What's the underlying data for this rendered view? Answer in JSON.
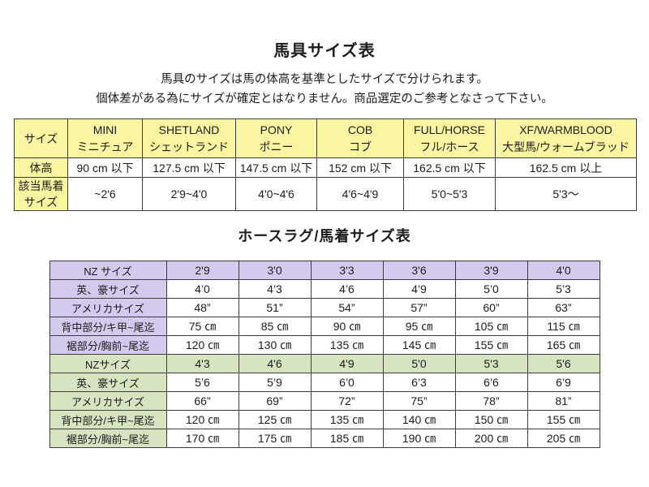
{
  "page": {
    "title1": "馬具サイズ表",
    "subtitle1": "馬具のサイズは馬の体高を基準としたサイズで分けられます。",
    "subtitle2": "個体差がある為にサイズが確定とはなりません。商品選定のご参考となさって下さい。",
    "title2": "ホースラグ/馬着サイズ表"
  },
  "colors": {
    "header_yellow": "#FAF5A0",
    "band_purple": "#D6C9EF",
    "band_green": "#D7E4C2",
    "table_border": "#3C3C3C"
  },
  "harness_table": {
    "corner_label": "サイズ",
    "columns": [
      {
        "en": "MINI",
        "ja": "ミニチュア"
      },
      {
        "en": "SHETLAND",
        "ja": "シェットランド"
      },
      {
        "en": "PONY",
        "ja": "ポニー"
      },
      {
        "en": "COB",
        "ja": "コブ"
      },
      {
        "en": "FULL/HORSE",
        "ja": "フル/ホース"
      },
      {
        "en": "XF/WARMBLOOD",
        "ja": "大型馬/ウォームブラッド"
      }
    ],
    "rows": [
      {
        "label": "体高",
        "values": [
          "90 cm 以下",
          "127.5 cm 以下",
          "147.5 cm 以下",
          "152 cm 以下",
          "162.5 cm 以下",
          "162.5 cm 以上"
        ]
      },
      {
        "label": "該当馬着\nサイズ",
        "values": [
          "~2'6",
          "2'9~4'0",
          "4'0~4'6",
          "4'6~4'9",
          "5'0~5'3",
          "5'3～"
        ]
      }
    ]
  },
  "rug_table": {
    "rows": [
      {
        "label": "NZ サイズ",
        "band": "purple",
        "fill": "full",
        "values": [
          "2'9",
          "3'0",
          "3'3",
          "3'6",
          "3'9",
          "4'0"
        ]
      },
      {
        "label": "英、豪サイズ",
        "band": "purple",
        "fill": "label",
        "values": [
          "4’0",
          "4’3",
          "4’6",
          "4’9",
          "5’0",
          "5’3"
        ]
      },
      {
        "label": "アメリカサイズ",
        "band": "purple",
        "fill": "label",
        "values": [
          "48”",
          "51”",
          "54”",
          "57”",
          "60”",
          "63”"
        ]
      },
      {
        "label": "背中部分/キ甲~尾迄",
        "band": "purple",
        "fill": "label",
        "values": [
          "75 ㎝",
          "85 ㎝",
          "90 ㎝",
          "95 ㎝",
          "105 ㎝",
          "115 ㎝"
        ]
      },
      {
        "label": "裾部分/胸前~尾迄",
        "band": "purple",
        "fill": "label",
        "values": [
          "120 ㎝",
          "130 ㎝",
          "135 ㎝",
          "145 ㎝",
          "155 ㎝",
          "165 ㎝"
        ]
      },
      {
        "label": "NZサイズ",
        "band": "green",
        "fill": "full",
        "values": [
          "4'3",
          "4'6",
          "4'9",
          "5'0",
          "5'3",
          "5'6"
        ]
      },
      {
        "label": "英、豪サイズ",
        "band": "green",
        "fill": "label",
        "values": [
          "5’6",
          "5’9",
          "6’0",
          "6’3",
          "6’6",
          "6’9"
        ]
      },
      {
        "label": "アメリカサイズ",
        "band": "green",
        "fill": "label",
        "values": [
          "66”",
          "69”",
          "72”",
          "75”",
          "78”",
          "81”"
        ]
      },
      {
        "label": "背中部分/キ甲~尾迄",
        "band": "green",
        "fill": "label",
        "values": [
          "120 ㎝",
          "125 ㎝",
          "135 ㎝",
          "140 ㎝",
          "150 ㎝",
          "155 ㎝"
        ]
      },
      {
        "label": "裾部分/胸前~尾迄",
        "band": "green",
        "fill": "label",
        "values": [
          "170 ㎝",
          "175 ㎝",
          "185 ㎝",
          "190 ㎝",
          "200 ㎝",
          "205 ㎝"
        ]
      }
    ]
  }
}
